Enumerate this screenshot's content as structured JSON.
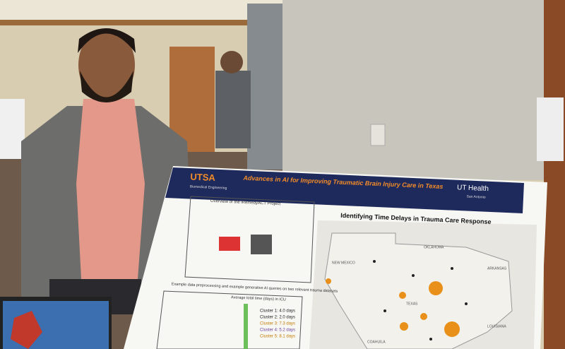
{
  "poster": {
    "header": {
      "logo": "UTSA",
      "department": "Biomedical Engineering",
      "title": "Advances in AI for Improving Traumatic Brain Injury Care in Texas",
      "partner": "UT Health",
      "partner_sub": "San Antonio"
    },
    "overview": {
      "title": "Overview of the iRemedyACT Project"
    },
    "queries": {
      "title": "Example data preprocessing and example generative AI queries on two relevant trauma datasets",
      "chart_title": "Average total time (days) in ICU",
      "clusters": [
        "Cluster 1: 4.0 days",
        "Cluster 2: 2.0 days",
        "Cluster 3: 7.3 days",
        "Cluster 4: 5.2 days",
        "Cluster 5: 8.1 days"
      ]
    },
    "map": {
      "title": "Identifying Time Delays in Trauma Care Response",
      "labels": [
        "NEW MEXICO",
        "OKLAHOMA",
        "ARKANSAS",
        "TEXAS",
        "LOUISIANA",
        "COAHUILA"
      ]
    }
  }
}
